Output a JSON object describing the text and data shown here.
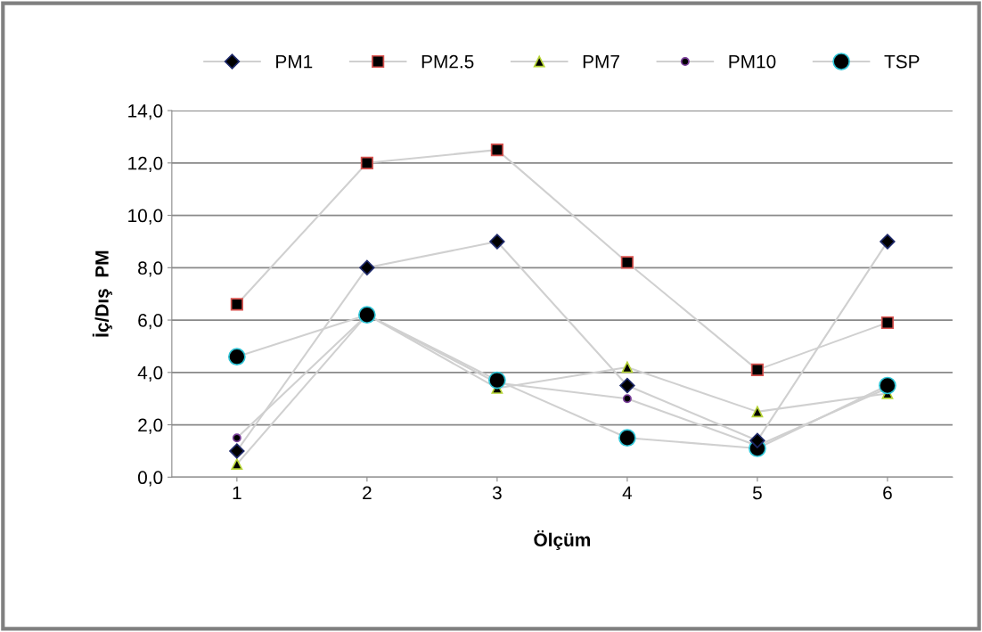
{
  "chart_data": {
    "type": "line",
    "xlabel": "Ölçüm",
    "ylabel": "İç/Dış  PM",
    "categories": [
      "1",
      "2",
      "3",
      "4",
      "5",
      "6"
    ],
    "series": [
      {
        "name": "PM1",
        "color": "#1f2a6b",
        "marker": "diamond",
        "values": [
          1.0,
          8.0,
          9.0,
          3.5,
          1.4,
          9.0
        ]
      },
      {
        "name": "PM2.5",
        "color": "#d9534f",
        "marker": "square",
        "values": [
          6.6,
          12.0,
          12.5,
          8.2,
          4.1,
          5.9
        ]
      },
      {
        "name": "PM7",
        "color": "#b5d334",
        "marker": "triangle",
        "values": [
          0.5,
          6.2,
          3.4,
          4.2,
          2.5,
          3.2
        ]
      },
      {
        "name": "PM10",
        "color": "#7a3f9a",
        "marker": "circle",
        "values": [
          1.5,
          6.2,
          3.6,
          3.0,
          1.2,
          3.4
        ]
      },
      {
        "name": "TSP",
        "color": "#2ec4d6",
        "marker": "circle",
        "values": [
          4.6,
          6.2,
          3.7,
          1.5,
          1.1,
          3.5
        ]
      }
    ],
    "ylim": [
      0,
      14
    ],
    "yticks": [
      {
        "value": 0,
        "label": "0,0"
      },
      {
        "value": 2,
        "label": "2,0"
      },
      {
        "value": 4,
        "label": "4,0"
      },
      {
        "value": 6,
        "label": "6,0"
      },
      {
        "value": 8,
        "label": "8,0"
      },
      {
        "value": 10,
        "label": "10,0"
      },
      {
        "value": 12,
        "label": "12,0"
      },
      {
        "value": 14,
        "label": "14,0"
      }
    ],
    "grid": "y",
    "legend": "top",
    "line_style": "solid"
  }
}
